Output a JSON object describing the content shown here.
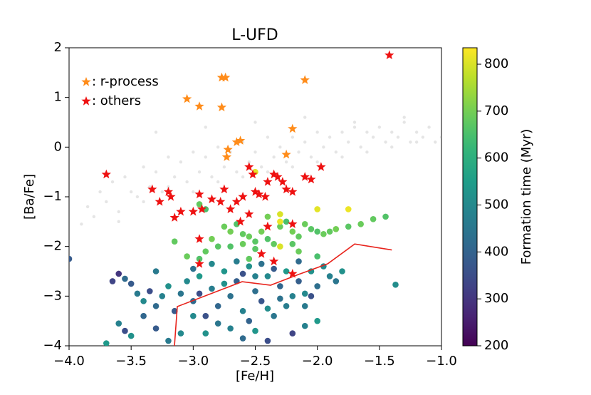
{
  "chart_data": {
    "type": "scatter",
    "title": "L-UFD",
    "x_label": "[Fe/H]",
    "y_label": "[Ba/Fe]",
    "xlim": [
      -4,
      -1
    ],
    "ylim": [
      -4,
      2
    ],
    "xticks": [
      {
        "value": -4,
        "label": "−4.0"
      },
      {
        "value": -3.5,
        "label": "−3.5"
      },
      {
        "value": -3,
        "label": "−3.0"
      },
      {
        "value": -2.5,
        "label": "−2.5"
      },
      {
        "value": -2,
        "label": "−2.0"
      },
      {
        "value": -1.5,
        "label": "−1.5"
      },
      {
        "value": -1,
        "label": "−1.0"
      }
    ],
    "yticks": [
      {
        "value": -4,
        "label": "−4"
      },
      {
        "value": -3,
        "label": "−3"
      },
      {
        "value": -2,
        "label": "−2"
      },
      {
        "value": -1,
        "label": "−1"
      },
      0,
      1,
      2
    ],
    "colorbar": {
      "label": "Formation time (Myr)",
      "colormap": "viridis",
      "clim": [
        200,
        835
      ],
      "ticks": [
        200,
        300,
        400,
        500,
        600,
        700,
        800
      ]
    },
    "legend": "upper left",
    "series": [
      {
        "marker": "dot-faint",
        "color": "#999999",
        "x": [
          -3.9,
          -3.85,
          -3.8,
          -3.75,
          -3.7,
          -3.65,
          -3.6,
          -3.55,
          -3.5,
          -3.45,
          -3.4,
          -3.35,
          -3.3,
          -3.25,
          -3.2,
          -3.15,
          -3.1,
          -3.05,
          -3.0,
          -2.95,
          -2.9,
          -2.85,
          -2.8,
          -2.75,
          -2.7,
          -2.65,
          -2.6,
          -2.55,
          -2.5,
          -2.45,
          -2.4,
          -2.35,
          -2.3,
          -2.25,
          -2.2,
          -2.15,
          -2.1,
          -2.05,
          -2.0,
          -1.95,
          -1.9,
          -1.85,
          -1.8,
          -1.75,
          -1.7,
          -1.65,
          -1.6,
          -1.55,
          -1.5,
          -1.45,
          -1.4,
          -1.35,
          -1.3,
          -1.25,
          -1.2,
          -1.15,
          -1.1,
          -1.05,
          -1.0,
          -3.6,
          -3.4,
          -3.2,
          -3.0,
          -2.8,
          -2.6,
          -2.4,
          -2.2,
          -2.0,
          -1.8,
          -1.6,
          -1.4,
          -1.2,
          -3.3,
          -2.9,
          -2.5,
          -2.1,
          -1.7,
          -1.3
        ],
        "y": [
          -1.55,
          -1.2,
          -1.4,
          -0.9,
          -1.1,
          -0.7,
          -1.3,
          -0.6,
          -0.9,
          -1.0,
          -0.4,
          -0.8,
          -0.5,
          -0.9,
          -0.2,
          -0.6,
          -0.3,
          -0.7,
          -0.1,
          -0.5,
          -0.2,
          -0.6,
          0.0,
          -0.4,
          -0.1,
          -0.5,
          0.1,
          -0.3,
          -0.1,
          -0.4,
          0.2,
          -0.2,
          0.0,
          -0.3,
          0.2,
          -0.1,
          0.1,
          -0.2,
          0.3,
          0.0,
          0.2,
          -0.1,
          0.3,
          0.1,
          0.4,
          0.0,
          0.3,
          0.2,
          0.4,
          0.1,
          0.3,
          0.2,
          0.5,
          0.1,
          0.3,
          0.2,
          0.4,
          0.1,
          0.2,
          -1.5,
          -1.1,
          -0.8,
          -0.9,
          -0.7,
          -0.6,
          -0.5,
          -0.4,
          -0.3,
          -0.2,
          -0.1,
          0.0,
          0.1,
          0.3,
          0.4,
          0.5,
          0.6,
          0.5,
          0.6
        ]
      },
      {
        "marker": "dot-cmap",
        "x": [
          -2.95,
          -2.9,
          -2.75,
          -2.7,
          -2.65,
          -2.6,
          -2.55,
          -2.5,
          -2.45,
          -2.4,
          -2.35,
          -2.3,
          -2.25,
          -2.2,
          -2.15,
          -2.1,
          -2.05,
          -2.0,
          -1.95,
          -1.9,
          -1.85,
          -1.75,
          -1.65,
          -1.55,
          -1.45,
          -2.8,
          -2.9,
          -3.05,
          -3.15,
          -2.7,
          -2.6,
          -2.5,
          -2.4,
          -2.3,
          -2.3,
          -2.0,
          -1.75,
          -2.3,
          -2.5,
          -2.55,
          -2.2,
          -2.15,
          -2.0,
          -2.85,
          -2.95,
          -3.55,
          -3.5,
          -3.45,
          -3.4,
          -3.35,
          -3.3,
          -3.25,
          -3.2,
          -3.15,
          -3.1,
          -3.05,
          -3.0,
          -2.95,
          -2.9,
          -2.85,
          -2.8,
          -2.75,
          -2.7,
          -2.65,
          -2.6,
          -2.55,
          -2.5,
          -2.45,
          -2.4,
          -2.35,
          -2.3,
          -2.25,
          -2.2,
          -2.15,
          -2.1,
          -2.05,
          -2.0,
          -1.95,
          -1.9,
          -1.85,
          -1.8,
          -1.37,
          -4.0,
          -3.65,
          -3.6,
          -3.7,
          -3.6,
          -3.55,
          -3.5,
          -3.3,
          -3.2,
          -3.1,
          -2.9,
          -2.7,
          -2.6,
          -2.5,
          -2.4,
          -2.2,
          -2.1,
          -2.0,
          -3.3,
          -3.0,
          -2.85,
          -2.65,
          -2.45,
          -2.35,
          -2.15,
          -2.05,
          -2.25,
          -2.55,
          -2.8,
          -3.0,
          -3.4,
          -2.95,
          -2.75,
          -2.5,
          -2.3,
          -2.1,
          -2.6,
          -2.4
        ],
        "y": [
          -1.15,
          -1.25,
          -1.6,
          -1.7,
          -1.55,
          -1.75,
          -1.8,
          -1.9,
          -1.7,
          -1.85,
          -1.95,
          -1.6,
          -1.5,
          -1.7,
          -1.8,
          -1.55,
          -1.65,
          -1.7,
          -1.75,
          -1.7,
          -1.65,
          -1.6,
          -1.55,
          -1.45,
          -1.4,
          -2.0,
          -2.1,
          -2.2,
          -1.9,
          -2.0,
          -1.95,
          -2.05,
          -1.4,
          -1.35,
          -1.5,
          -1.25,
          -1.25,
          -2.0,
          -0.5,
          -2.25,
          -1.95,
          -2.1,
          -2.2,
          -1.85,
          -2.25,
          -2.65,
          -2.75,
          -2.95,
          -3.1,
          -2.9,
          -3.2,
          -3.0,
          -2.8,
          -3.3,
          -2.95,
          -2.7,
          -3.1,
          -2.6,
          -3.4,
          -2.85,
          -3.2,
          -2.5,
          -3.0,
          -2.7,
          -3.3,
          -2.4,
          -2.9,
          -3.1,
          -2.6,
          -3.4,
          -2.8,
          -2.5,
          -3.0,
          -2.7,
          -3.2,
          -2.5,
          -2.8,
          -2.4,
          -2.6,
          -2.7,
          -2.5,
          -2.77,
          -2.25,
          -2.7,
          -2.55,
          -3.95,
          -3.55,
          -3.7,
          -3.8,
          -3.65,
          -3.9,
          -3.75,
          -3.75,
          -3.65,
          -3.85,
          -3.7,
          -3.9,
          -3.75,
          -3.6,
          -3.5,
          -2.5,
          -2.45,
          -2.35,
          -2.3,
          -2.35,
          -2.45,
          -2.3,
          -3.0,
          -3.2,
          -3.5,
          -3.55,
          -3.4,
          -3.4,
          -2.95,
          -2.75,
          -2.6,
          -3.05,
          -2.95,
          -2.55,
          -3.25
        ],
        "c": [
          680,
          650,
          690,
          700,
          660,
          680,
          690,
          670,
          700,
          660,
          680,
          690,
          650,
          700,
          680,
          690,
          670,
          660,
          690,
          680,
          700,
          670,
          690,
          680,
          660,
          670,
          680,
          690,
          680,
          660,
          690,
          670,
          700,
          800,
          820,
          810,
          820,
          800,
          810,
          680,
          670,
          690,
          650,
          700,
          660,
          420,
          380,
          460,
          500,
          350,
          420,
          480,
          520,
          380,
          450,
          500,
          420,
          540,
          360,
          470,
          410,
          530,
          440,
          390,
          480,
          520,
          430,
          370,
          500,
          450,
          410,
          540,
          480,
          390,
          460,
          520,
          430,
          500,
          480,
          450,
          520,
          510,
          380,
          330,
          300,
          540,
          480,
          350,
          520,
          380,
          460,
          500,
          520,
          480,
          420,
          530,
          350,
          330,
          480,
          540,
          460,
          440,
          500,
          470,
          440,
          380,
          420,
          360,
          470,
          400,
          450,
          500,
          410,
          350,
          520,
          480,
          440,
          500,
          360,
          510
        ]
      },
      {
        "marker": "line",
        "color": "#e8231c",
        "x": [
          -3.151,
          -3.128,
          -2.606,
          -2.376,
          -2.147,
          -1.917,
          -1.699,
          -1.4
        ],
        "y": [
          -4.0,
          -3.21,
          -2.71,
          -2.78,
          -2.56,
          -2.35,
          -1.95,
          -2.07
        ]
      },
      {
        "marker": "star",
        "name": ": r-process",
        "color": "#ff8c1a",
        "x": [
          -2.77,
          -2.74,
          -2.1,
          -3.05,
          -2.95,
          -2.77,
          -2.2,
          -2.65,
          -2.62,
          -2.72,
          -2.73,
          -2.25
        ],
        "y": [
          1.4,
          1.4,
          1.35,
          0.97,
          0.82,
          0.8,
          0.37,
          0.1,
          0.13,
          -0.05,
          -0.2,
          -0.15
        ]
      },
      {
        "marker": "star",
        "name": ": others",
        "color": "#ee1111",
        "x": [
          -1.42,
          -3.7,
          -3.33,
          -3.27,
          -3.2,
          -3.18,
          -3.15,
          -3.1,
          -3.0,
          -2.95,
          -2.93,
          -2.85,
          -2.78,
          -2.75,
          -2.7,
          -2.65,
          -2.6,
          -2.55,
          -2.52,
          -2.5,
          -2.47,
          -2.42,
          -2.4,
          -2.35,
          -2.32,
          -2.28,
          -2.25,
          -2.2,
          -2.1,
          -1.97,
          -2.05,
          -2.55,
          -2.62,
          -2.4,
          -2.2,
          -2.95,
          -2.45,
          -2.95,
          -2.35,
          -2.2
        ],
        "y": [
          1.85,
          -0.55,
          -0.85,
          -1.1,
          -0.9,
          -1.0,
          -1.42,
          -1.3,
          -1.3,
          -0.95,
          -1.25,
          -1.05,
          -1.1,
          -0.85,
          -1.25,
          -1.1,
          -1.0,
          -0.4,
          -0.55,
          -0.9,
          -0.95,
          -1.0,
          -0.7,
          -0.55,
          -0.6,
          -0.7,
          -0.85,
          -0.9,
          -0.6,
          -0.4,
          -0.65,
          -1.35,
          -1.5,
          -1.6,
          -1.55,
          -1.85,
          -2.15,
          -2.35,
          -2.3,
          -2.55
        ]
      }
    ]
  }
}
